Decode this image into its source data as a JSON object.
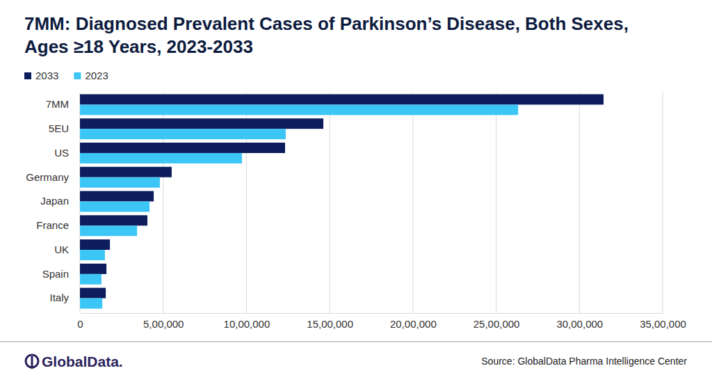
{
  "chart_data": {
    "type": "bar",
    "orientation": "horizontal",
    "title": "7MM: Diagnosed Prevalent Cases of Parkinson’s Disease, Both Sexes, Ages ≥18 Years, 2023-2033",
    "categories": [
      "7MM",
      "5EU",
      "US",
      "Germany",
      "Japan",
      "France",
      "UK",
      "Spain",
      "Italy"
    ],
    "series": [
      {
        "name": "2033",
        "color": "#0c1c5c",
        "values": [
          3145000,
          1462000,
          1232000,
          551000,
          443000,
          405000,
          180000,
          159000,
          155000
        ]
      },
      {
        "name": "2023",
        "color": "#3cc6f6",
        "values": [
          2632000,
          1236000,
          973000,
          480000,
          418000,
          343000,
          150000,
          129000,
          134000
        ]
      }
    ],
    "xlim": [
      0,
      3500000
    ],
    "xticks": [
      0,
      {
        "value": 500000,
        "label": "5,00,000"
      },
      {
        "value": 1000000,
        "label": "10,00,000"
      },
      {
        "value": 1500000,
        "label": "15,00,000"
      },
      {
        "value": 2000000,
        "label": "20,00,000"
      },
      {
        "value": 2500000,
        "label": "25,00,000"
      },
      {
        "value": 3000000,
        "label": "30,00,000"
      },
      {
        "value": 3500000,
        "label": "35,00,000"
      }
    ],
    "grid": true,
    "legend": "top-left",
    "annotations": [
      "GlobalData.",
      "Source: GlobalData Pharma Intelligence Center"
    ]
  }
}
